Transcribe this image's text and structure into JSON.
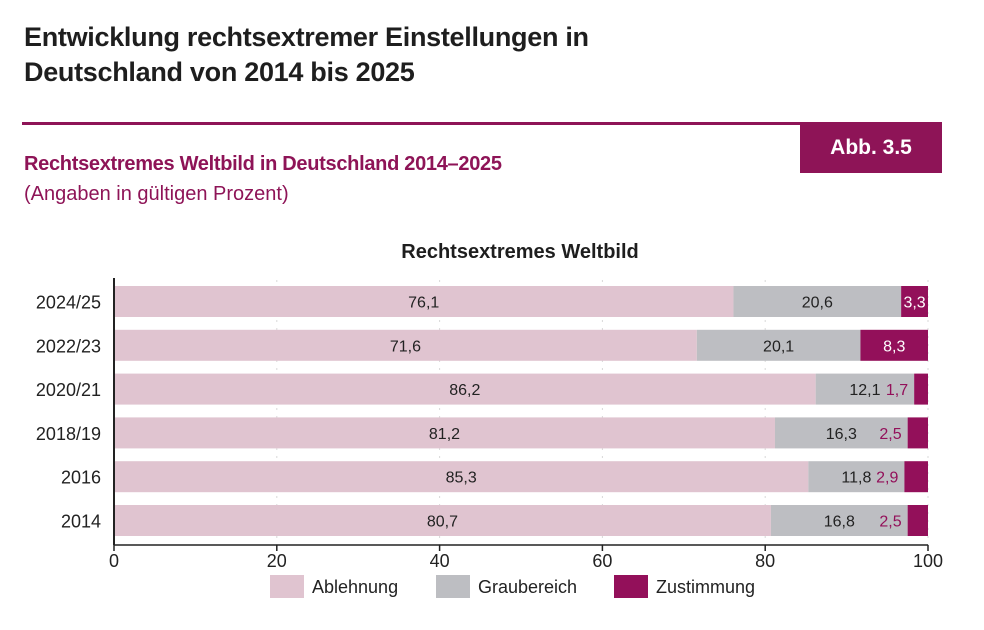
{
  "header": {
    "title_line1": "Entwicklung rechtsextremer Einstellungen in",
    "title_line2": "Deutschland von 2014 bis 2025",
    "figure_label": "Abb. 3.5",
    "subtitle": "Rechtsextremes Weltbild in Deutschland 2014–2025",
    "note": "(Angaben in gültigen Prozent)"
  },
  "chart_data": {
    "type": "bar",
    "orientation": "horizontal",
    "stacked": true,
    "title": "Rechtsextremes Weltbild",
    "categories": [
      "2024/25",
      "2022/23",
      "2020/21",
      "2018/19",
      "2016",
      "2014"
    ],
    "series": [
      {
        "name": "Ablehnung",
        "color": "#e0c4d0",
        "values": [
          76.1,
          71.6,
          86.2,
          81.2,
          85.3,
          80.7
        ],
        "labels": [
          "76,1",
          "71,6",
          "86,2",
          "81,2",
          "85,3",
          "80,7"
        ]
      },
      {
        "name": "Graubereich",
        "color": "#bdbec2",
        "values": [
          20.6,
          20.1,
          12.1,
          16.3,
          11.8,
          16.8
        ],
        "labels": [
          "20,6",
          "20,1",
          "12,1",
          "16,3",
          "11,8",
          "16,8"
        ]
      },
      {
        "name": "Zustimmung",
        "color": "#93105a",
        "values": [
          3.3,
          8.3,
          1.7,
          2.5,
          2.9,
          2.5
        ],
        "labels": [
          "3,3",
          "8,3",
          "1,7",
          "2,5",
          "2,9",
          "2,5"
        ]
      }
    ],
    "xlim": [
      0,
      100
    ],
    "xticks": [
      "0",
      "20",
      "40",
      "60",
      "80",
      "100"
    ],
    "grid": false,
    "legend": "bottom"
  }
}
